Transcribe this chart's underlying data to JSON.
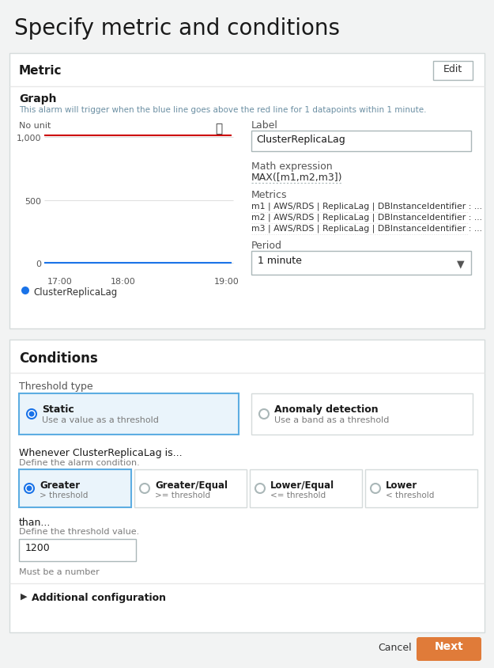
{
  "page_title": "Specify metric and conditions",
  "bg_color": "#f2f3f3",
  "panel_bg": "#ffffff",
  "panel_border": "#d5dbdb",
  "section1_title": "Metric",
  "edit_btn_text": "Edit",
  "graph_label": "Graph",
  "graph_subtitle": "This alarm will trigger when the blue line goes above the red line for 1 datapoints within 1 minute.",
  "no_unit_label": "No unit",
  "y_ticks": [
    "0",
    "500",
    "1,000"
  ],
  "x_ticks": [
    "17:00",
    "18:00",
    "19:00"
  ],
  "legend_dot_color": "#1a73e8",
  "legend_text": "ClusterReplicaLag",
  "label_field_text": "Label",
  "label_value": "ClusterReplicaLag",
  "math_expr_label": "Math expression",
  "math_expr_value": "MAX([m1,m2,m3])",
  "metrics_label": "Metrics",
  "metrics_lines": [
    "m1 | AWS/RDS | ReplicaLag | DBInstanceIdentifier : ...",
    "m2 | AWS/RDS | ReplicaLag | DBInstanceIdentifier : ...",
    "m3 | AWS/RDS | ReplicaLag | DBInstanceIdentifier : ..."
  ],
  "period_label": "Period",
  "period_value": "1 minute",
  "section2_title": "Conditions",
  "threshold_type_label": "Threshold type",
  "static_label": "Static",
  "static_sublabel": "Use a value as a threshold",
  "anomaly_label": "Anomaly detection",
  "anomaly_sublabel": "Use a band as a threshold",
  "whenever_label": "Whenever ClusterReplicaLag is...",
  "whenever_sublabel": "Define the alarm condition.",
  "condition_options": [
    {
      "label": "Greater",
      "sublabel": "> threshold",
      "selected": true
    },
    {
      "label": "Greater/Equal",
      "sublabel": ">= threshold",
      "selected": false
    },
    {
      "label": "Lower/Equal",
      "sublabel": "<= threshold",
      "selected": false
    },
    {
      "label": "Lower",
      "sublabel": "< threshold",
      "selected": false
    }
  ],
  "than_label": "than...",
  "than_sublabel": "Define the threshold value.",
  "than_value": "1200",
  "must_be_number": "Must be a number",
  "additional_config": "Additional configuration",
  "cancel_btn": "Cancel",
  "next_btn": "Next",
  "next_btn_color": "#e07b39",
  "selected_radio_color": "#1a73e8",
  "selected_box_bg": "#eaf4fb",
  "selected_box_border": "#5dade2"
}
